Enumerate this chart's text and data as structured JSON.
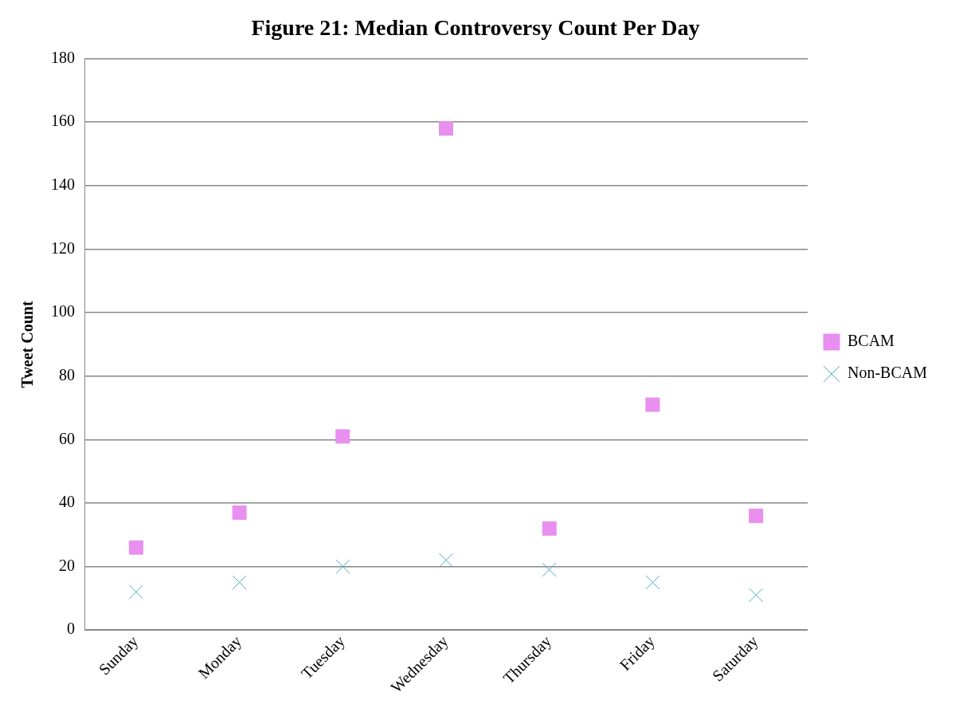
{
  "chart_data": {
    "type": "scatter",
    "title": "Figure 21: Median Controversy Count Per Day",
    "ylabel": "Tweet Count",
    "categories": [
      "Sunday",
      "Monday",
      "Tuesday",
      "Wednesday",
      "Thursday",
      "Friday",
      "Saturday"
    ],
    "series": [
      {
        "name": "BCAM",
        "color": "#e98ff0",
        "marker": "square",
        "values": [
          26,
          37,
          61,
          158,
          32,
          71,
          36
        ]
      },
      {
        "name": "Non-BCAM",
        "color": "#4bacc6",
        "marker": "cross",
        "values": [
          12,
          15,
          20,
          22,
          19,
          15,
          11
        ]
      }
    ],
    "ylim": [
      0,
      180
    ],
    "yticks": [
      0,
      20,
      40,
      60,
      80,
      100,
      120,
      140,
      160,
      180
    ],
    "grid": "y",
    "legend": "right"
  }
}
